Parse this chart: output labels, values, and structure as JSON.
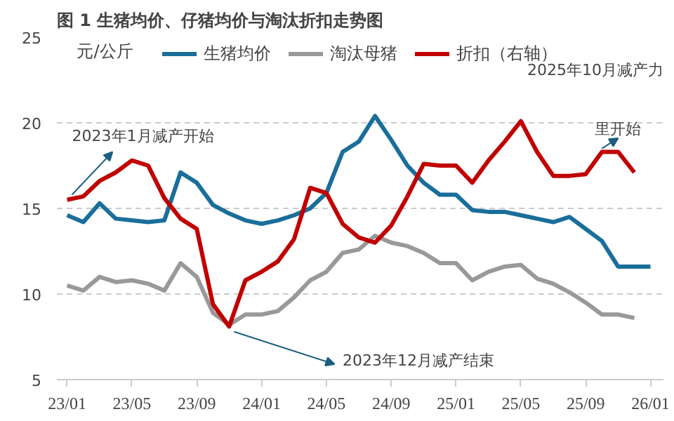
{
  "chart_data": {
    "type": "line",
    "title": "图 1  生猪均价、仔猪均价与淘汰折扣走势图",
    "ylabel": "元/公斤",
    "x": [
      "2023-01",
      "2023-02",
      "2023-03",
      "2023-04",
      "2023-05",
      "2023-06",
      "2023-07",
      "2023-08",
      "2023-09",
      "2023-10",
      "2023-11",
      "2023-12",
      "2024-01",
      "2024-02",
      "2024-03",
      "2024-04",
      "2024-05",
      "2024-06",
      "2024-07",
      "2024-08",
      "2024-09",
      "2024-10",
      "2024-11",
      "2024-12",
      "2025-01",
      "2025-02",
      "2025-03",
      "2025-04",
      "2025-05",
      "2025-06",
      "2025-07",
      "2025-08",
      "2025-09",
      "2025-10",
      "2025-11",
      "2025-12",
      "2026-01"
    ],
    "series": [
      {
        "name": "生猪均价",
        "color": "#1a6e9a",
        "values": [
          14.6,
          14.2,
          15.3,
          14.4,
          14.3,
          14.2,
          14.3,
          17.1,
          16.5,
          15.2,
          14.7,
          14.3,
          14.1,
          14.3,
          14.6,
          15.0,
          15.9,
          18.3,
          18.9,
          20.4,
          19.0,
          17.5,
          16.5,
          15.8,
          15.8,
          14.9,
          14.8,
          14.8,
          14.6,
          14.4,
          14.2,
          14.5,
          13.8,
          13.1,
          11.6,
          11.6,
          11.6
        ]
      },
      {
        "name": "淘汰母猪",
        "color": "#999999",
        "values": [
          10.5,
          10.2,
          11.0,
          10.7,
          10.8,
          10.6,
          10.2,
          11.8,
          11.0,
          8.9,
          8.2,
          8.8,
          8.8,
          9.0,
          9.8,
          10.8,
          11.3,
          12.4,
          12.6,
          13.4,
          13.0,
          12.8,
          12.4,
          11.8,
          11.8,
          10.8,
          11.3,
          11.6,
          11.7,
          10.9,
          10.6,
          10.1,
          9.5,
          8.8,
          8.8,
          8.6,
          null
        ]
      },
      {
        "name": "折扣（右轴）",
        "color": "#c00000",
        "values": [
          15.5,
          15.7,
          16.6,
          17.1,
          17.8,
          17.5,
          15.6,
          14.4,
          13.8,
          9.4,
          8.1,
          10.8,
          11.3,
          11.9,
          13.2,
          16.2,
          15.9,
          14.1,
          13.3,
          13.0,
          14.0,
          15.7,
          17.6,
          17.5,
          17.5,
          16.5,
          17.8,
          18.9,
          20.1,
          18.3,
          16.9,
          16.9,
          17.0,
          18.3,
          18.3,
          17.1,
          null
        ]
      }
    ],
    "xlim": [
      "2022-12-12",
      "2026-01-25"
    ],
    "xticks": [
      {
        "value": "2023-01",
        "label": "23/01"
      },
      {
        "value": "2023-05",
        "label": "23/05"
      },
      {
        "value": "2023-09",
        "label": "23/09"
      },
      {
        "value": "2024-01",
        "label": "24/01"
      },
      {
        "value": "2024-05",
        "label": "24/05"
      },
      {
        "value": "2024-09",
        "label": "24/09"
      },
      {
        "value": "2025-01",
        "label": "25/01"
      },
      {
        "value": "2025-05",
        "label": "25/05"
      },
      {
        "value": "2025-09",
        "label": "25/09"
      },
      {
        "value": "2026-01",
        "label": "26/01"
      }
    ],
    "ylim": [
      5,
      25
    ],
    "yticks": [
      5,
      10,
      15,
      20,
      25
    ],
    "grid": "y",
    "legend": "top",
    "tick_labels": "xy",
    "annotations": [
      {
        "text": "2023年1月减产开始",
        "x": "2023-01",
        "y": 15.5
      },
      {
        "text": "2023年12月减产结束",
        "x": "2023-11",
        "y": 8.1
      },
      "2025年10月减产力",
      {
        "text": "里开始",
        "x": "2025-10",
        "y": 18.3
      }
    ]
  }
}
